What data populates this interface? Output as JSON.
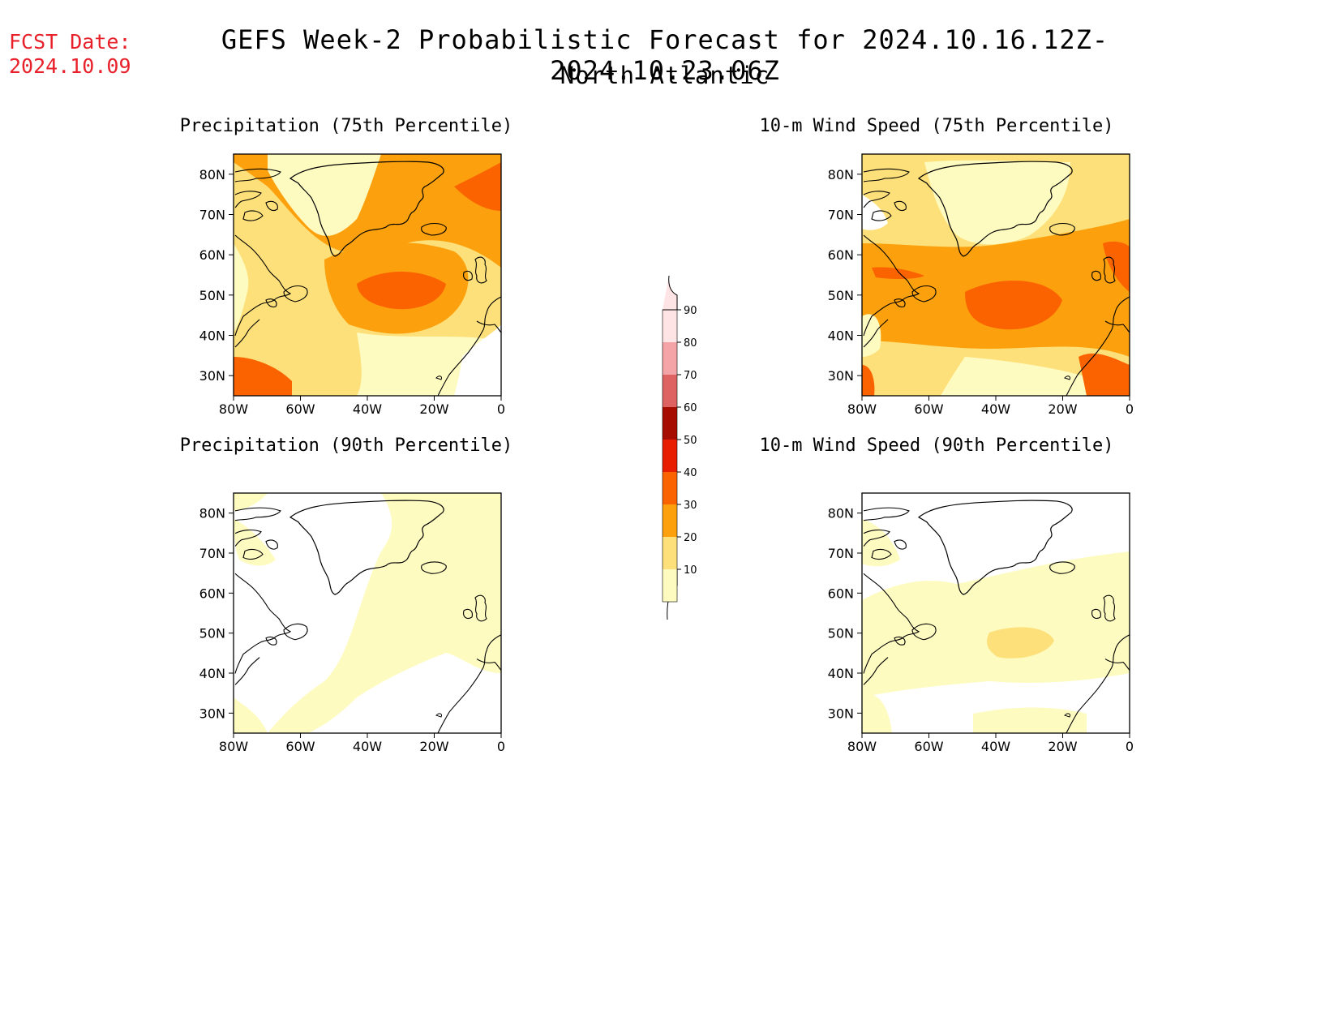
{
  "header": {
    "fcst_label": "FCST Date:",
    "fcst_date": "2024.10.09",
    "title": "GEFS Week-2 Probabilistic Forecast for 2024.10.16.12Z-2024.10.23.06Z",
    "region": "North Atlantic"
  },
  "panels": [
    {
      "id": "precip75",
      "title": "Precipitation (75th Percentile)"
    },
    {
      "id": "wind75",
      "title": "10-m Wind Speed (75th Percentile)"
    },
    {
      "id": "precip90",
      "title": "Precipitation (90th Percentile)"
    },
    {
      "id": "wind90",
      "title": "10-m Wind Speed (90th Percentile)"
    }
  ],
  "map_extent": {
    "lon_min": -80,
    "lon_max": 0,
    "lat_min": 25,
    "lat_max": 85
  },
  "axes": {
    "lat_ticks": [
      "80N",
      "70N",
      "60N",
      "50N",
      "40N",
      "30N"
    ],
    "lon_ticks": [
      "80W",
      "60W",
      "40W",
      "20W",
      "0"
    ]
  },
  "colorbar": {
    "levels": [
      "10",
      "20",
      "30",
      "40",
      "50",
      "60",
      "70",
      "80",
      "90"
    ],
    "colors": [
      "#fefbc1",
      "#fde07a",
      "#fca10d",
      "#fb6300",
      "#e81d00",
      "#a70c00",
      "#dd6261",
      "#f4a3a6",
      "#ffe4e6"
    ]
  }
}
